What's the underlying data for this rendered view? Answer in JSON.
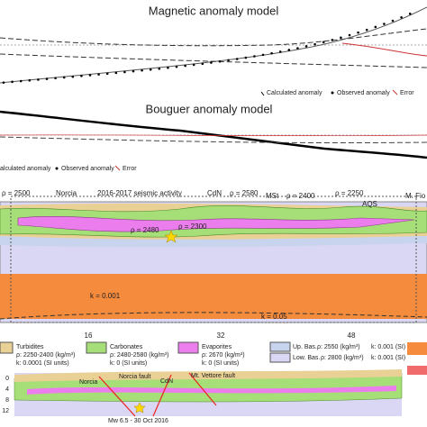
{
  "magnetic": {
    "title": "Magnetic anomaly model",
    "legend": [
      "Calculated anomaly",
      "Observed anomaly",
      "Error"
    ]
  },
  "bouguer": {
    "title": "Bouguer anomaly model",
    "legend": [
      "alculated anomaly",
      "Observed anomaly",
      "Error"
    ]
  },
  "section": {
    "labels": [
      "ρ = 2500",
      "Norcia",
      "2016-2017 seismic activity",
      "CdN",
      "ρ = 2580",
      "MSt",
      "ρ = 2400",
      "ρ = 2250",
      "AQS",
      "M. Fio",
      "ρ = 2480",
      "ρ = 2300",
      "k = 0.001",
      "k = 0.05"
    ],
    "x_ticks": [
      "16",
      "32",
      "48"
    ]
  },
  "legend": [
    {
      "name": "Turbidites",
      "density": "ρ: 2250-2400 (kg/m³)",
      "susceptibility": "k: 0.0001 (SI units)"
    },
    {
      "name": "Carbonates",
      "density": "ρ: 2480-2580 (kg/m³)",
      "susceptibility": "k: 0 (SI units)"
    },
    {
      "name": "Evaporites",
      "density": "ρ: 2670 (kg/m³)",
      "susceptibility": "k: 0 (SI units)"
    },
    {
      "name": "Up. Bas.",
      "density": "ρ: 2550 (kg/m³)",
      "susceptibility": "k: 0.001 (SI)"
    },
    {
      "name": "Low. Bas.",
      "density": "ρ: 2800 (kg/m³)",
      "susceptibility": "k: 0.001 (SI)"
    }
  ],
  "cross_section": {
    "depth_ticks": [
      "0",
      "4",
      "8",
      "12"
    ],
    "labels": [
      "Norcia",
      "Norcia fault",
      "CdN",
      "Mt. Vettore fault"
    ],
    "event": "Mw 6.5 - 30 Oct 2016"
  }
}
